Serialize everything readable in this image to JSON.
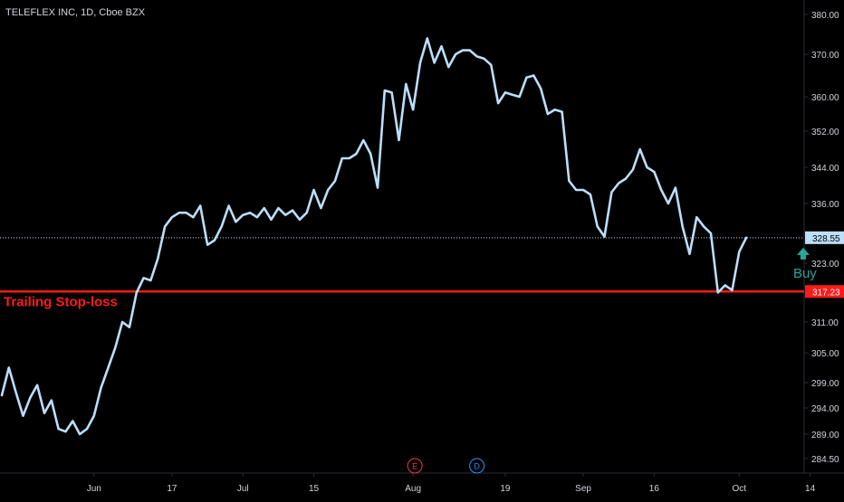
{
  "header": {
    "title": "TELEFLEX INC, 1D, Cboe BZX"
  },
  "colors": {
    "background": "#000000",
    "price_line": "#bbdefb",
    "axis_text": "#d1d4dc",
    "axis_line": "#2a2e39",
    "stop_loss": "#ff1a1a",
    "buy_arrow": "#26a69a",
    "last_price_bg": "#bbdefb",
    "event_e": "#f23645",
    "event_d": "#2196f3"
  },
  "chart_data": {
    "type": "line",
    "title": "TELEFLEX INC, 1D, Cboe BZX",
    "y_ticks": [
      {
        "value": 380,
        "label": "380.00"
      },
      {
        "value": 370,
        "label": "370.00"
      },
      {
        "value": 360,
        "label": "360.00"
      },
      {
        "value": 352,
        "label": "352.00"
      },
      {
        "value": 344,
        "label": "344.00"
      },
      {
        "value": 336,
        "label": "336.00"
      },
      {
        "value": 323,
        "label": "323.00"
      },
      {
        "value": 311,
        "label": "311.00"
      },
      {
        "value": 305,
        "label": "305.00"
      },
      {
        "value": 299,
        "label": "299.00"
      },
      {
        "value": 294,
        "label": "294.00"
      },
      {
        "value": 289,
        "label": "289.00"
      },
      {
        "value": 284.5,
        "label": "284.50"
      }
    ],
    "x_labels": [
      {
        "label": "Jun",
        "index": 13
      },
      {
        "label": "17",
        "index": 24
      },
      {
        "label": "Jul",
        "index": 34
      },
      {
        "label": "15",
        "index": 44
      },
      {
        "label": "Aug",
        "index": 58
      },
      {
        "label": "19",
        "index": 71
      },
      {
        "label": "Sep",
        "index": 82
      },
      {
        "label": "16",
        "index": 92
      },
      {
        "label": "Oct",
        "index": 104
      },
      {
        "label": "14",
        "index": 114
      }
    ],
    "values": [
      296.5,
      302,
      297,
      292.5,
      296,
      298.5,
      293,
      295.5,
      290,
      289.5,
      291.5,
      289,
      290,
      292.5,
      298,
      302,
      306,
      311,
      310,
      317,
      320,
      319.5,
      324,
      331,
      333,
      334,
      334,
      333,
      335.5,
      327,
      328,
      331,
      335.5,
      332,
      333.5,
      334,
      333,
      335,
      332.5,
      335,
      333.5,
      334.5,
      332.5,
      334,
      339,
      335,
      339,
      341,
      346,
      346,
      347,
      350,
      347,
      339.5,
      361.5,
      361,
      350,
      363,
      357,
      368,
      374,
      368,
      372,
      367,
      370,
      371,
      371,
      369.5,
      369,
      367.5,
      358.5,
      361,
      360.5,
      360,
      364.5,
      365,
      362,
      356,
      357,
      356.5,
      341,
      339,
      339,
      338,
      331,
      328.8,
      338.5,
      340.5,
      341.5,
      343.5,
      348,
      344,
      343,
      339,
      336,
      339.5,
      331,
      325,
      333,
      331,
      329.5,
      317,
      318.5,
      317.5,
      325.5,
      328.55
    ],
    "last_price": {
      "value": 328.55,
      "label": "328.55"
    },
    "horizontal_lines": [
      {
        "name": "Trailing Stop-loss",
        "value": 317.23,
        "label": "317.23"
      }
    ],
    "annotations": [
      {
        "text": "Trailing Stop-loss",
        "y": 317.23
      },
      {
        "text": "Buy",
        "x_index": 112,
        "y": 325
      }
    ],
    "events": [
      {
        "label": "E",
        "x_index": 58
      },
      {
        "label": "D",
        "x_index": 67
      }
    ]
  }
}
